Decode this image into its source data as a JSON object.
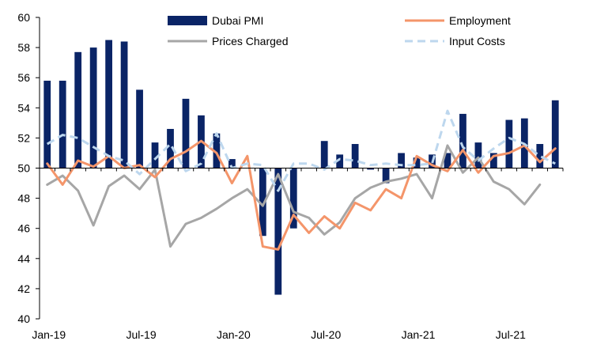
{
  "chart_data": {
    "type": "bar+line",
    "title": "",
    "xlabel": "",
    "ylabel": "",
    "ylim": [
      40,
      60
    ],
    "y_ticks": [
      40,
      42,
      44,
      46,
      48,
      50,
      52,
      54,
      56,
      58,
      60
    ],
    "baseline": 50,
    "grid": false,
    "legend_position": "top",
    "categories": [
      "Jan-19",
      "Feb-19",
      "Mar-19",
      "Apr-19",
      "May-19",
      "Jun-19",
      "Jul-19",
      "Aug-19",
      "Sep-19",
      "Oct-19",
      "Nov-19",
      "Dec-19",
      "Jan-20",
      "Feb-20",
      "Mar-20",
      "Apr-20",
      "May-20",
      "Jun-20",
      "Jul-20",
      "Aug-20",
      "Sep-20",
      "Oct-20",
      "Nov-20",
      "Dec-20",
      "Jan-21",
      "Feb-21",
      "Mar-21",
      "Apr-21",
      "May-21",
      "Jun-21",
      "Jul-21",
      "Aug-21",
      "Sep-21",
      "Oct-21"
    ],
    "x_tick_labels": [
      {
        "index": 0,
        "label": "Jan-19"
      },
      {
        "index": 6,
        "label": "Jul-19"
      },
      {
        "index": 12,
        "label": "Jan-20"
      },
      {
        "index": 18,
        "label": "Jul-20"
      },
      {
        "index": 24,
        "label": "Jan-21"
      },
      {
        "index": 30,
        "label": "Jul-21"
      }
    ],
    "series": [
      {
        "name": "Dubai PMI",
        "type": "bar",
        "color": "#0a2466",
        "values": [
          55.8,
          55.8,
          57.7,
          58.0,
          58.5,
          58.4,
          55.2,
          51.7,
          52.6,
          54.6,
          53.5,
          52.3,
          50.6,
          50.0,
          45.5,
          41.6,
          46.0,
          50.0,
          51.8,
          50.9,
          51.6,
          49.9,
          49.0,
          51.0,
          50.7,
          50.9,
          51.0,
          53.6,
          51.7,
          51.0,
          53.2,
          53.3,
          51.6,
          54.5
        ]
      },
      {
        "name": "Employment",
        "type": "line",
        "color": "#f4956a",
        "values": [
          50.3,
          48.9,
          50.5,
          50.1,
          50.8,
          50.0,
          50.2,
          49.4,
          50.6,
          51.1,
          51.8,
          51.0,
          49.0,
          50.8,
          44.8,
          44.6,
          46.9,
          45.7,
          46.8,
          46.0,
          47.7,
          47.2,
          48.6,
          48.0,
          50.8,
          50.2,
          49.8,
          51.2,
          49.7,
          50.8,
          51.0,
          51.5,
          50.4,
          51.3
        ]
      },
      {
        "name": "Prices Charged",
        "type": "line",
        "color": "#a6a6a6",
        "values": [
          48.9,
          49.5,
          48.5,
          46.2,
          48.8,
          49.5,
          48.6,
          49.9,
          44.8,
          46.3,
          46.7,
          47.3,
          48.0,
          48.6,
          47.5,
          49.6,
          47.1,
          46.7,
          45.6,
          46.4,
          48.0,
          48.7,
          49.1,
          49.3,
          49.6,
          48.0,
          51.5,
          49.7,
          50.7,
          49.1,
          48.6,
          47.6,
          48.9,
          null
        ]
      },
      {
        "name": "Input Costs",
        "type": "line",
        "dashed": true,
        "color": "#bdd7ee",
        "values": [
          51.6,
          52.2,
          52.0,
          51.4,
          50.8,
          50.5,
          49.6,
          50.6,
          51.6,
          49.8,
          50.3,
          52.3,
          50.0,
          50.3,
          50.2,
          48.5,
          50.3,
          50.3,
          49.9,
          50.6,
          50.5,
          50.2,
          50.3,
          50.2,
          50.2,
          50.3,
          53.8,
          51.4,
          50.5,
          51.3,
          52.0,
          51.6,
          50.8,
          50.3
        ]
      }
    ]
  }
}
